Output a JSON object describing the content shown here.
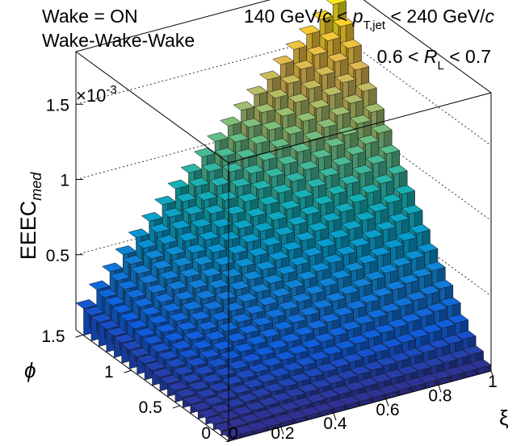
{
  "chart_data": {
    "type": "lego3d",
    "labels": {
      "line1": "Wake = ON",
      "line2": "Wake-Wake-Wake",
      "cond1_pre": "140 GeV/",
      "cond1_c": "c",
      "cond1_mid": " < ",
      "cond1_p": "p",
      "cond1_psub": "T,jet",
      "cond1_post": " < 240 GeV/",
      "cond2_pre": "0.6 < ",
      "cond2_R": "R",
      "cond2_Rsub": "L",
      "cond2_post": " < 0.7"
    },
    "zlabel": {
      "base": "EEEC",
      "sub": "med"
    },
    "xlabel": "ξ",
    "ylabel": "ϕ",
    "exponent": {
      "base": "×10",
      "exp": "-3"
    },
    "xlim": [
      0,
      1
    ],
    "ylim": [
      0,
      1.5708
    ],
    "zlim": [
      0,
      1.85
    ],
    "x_ticks": [
      "0",
      "0.2",
      "0.4",
      "0.6",
      "0.8",
      "1"
    ],
    "x_tick_values": [
      0,
      0.2,
      0.4,
      0.6,
      0.8,
      1
    ],
    "y_ticks": [
      "0",
      "0.5",
      "1",
      "1.5"
    ],
    "y_tick_values": [
      0,
      0.5,
      1,
      1.5
    ],
    "z_ticks": [
      "0.5",
      "1",
      "1.5"
    ],
    "z_tick_values": [
      0.5,
      1,
      1.5
    ],
    "nx": 20,
    "ny": 20,
    "surface": {
      "description_free_model": true,
      "z_at_x0_y0": 0.02,
      "z_at_x1_y0": 0.02,
      "z_at_x0_y_max": 0.12,
      "z_at_x1_y_max": 1.85,
      "z_at_x1_y_mid": 0.95
    },
    "palette": "kBird"
  }
}
